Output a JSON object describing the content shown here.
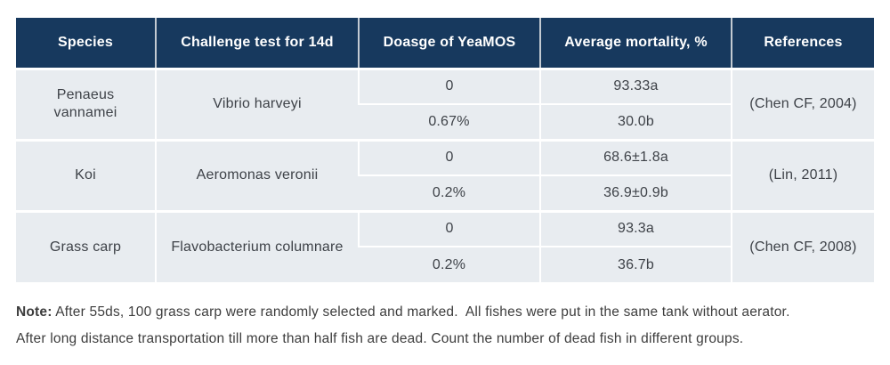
{
  "colors": {
    "header_bg": "#17395e",
    "header_text": "#ffffff",
    "row_bg": "#e8ecf0",
    "body_text": "#3e4248",
    "divider": "#ffffff"
  },
  "table": {
    "headers": [
      "Species",
      "Challenge test for 14d",
      "Doasge of YeaMOS",
      "Average mortality, %",
      "References"
    ],
    "groups": [
      {
        "species": "Penaeus vannamei",
        "challenge": "Vibrio harveyi",
        "rows": [
          {
            "dosage": "0",
            "mortality": "93.33a"
          },
          {
            "dosage": "0.67%",
            "mortality": "30.0b"
          }
        ],
        "reference": "(Chen CF, 2004)"
      },
      {
        "species": "Koi",
        "challenge": "Aeromonas veronii",
        "rows": [
          {
            "dosage": "0",
            "mortality": "68.6±1.8a"
          },
          {
            "dosage": "0.2%",
            "mortality": "36.9±0.9b"
          }
        ],
        "reference": "(Lin, 2011)"
      },
      {
        "species": "Grass carp",
        "challenge": "Flavobacterium columnare",
        "rows": [
          {
            "dosage": "0",
            "mortality": "93.3a"
          },
          {
            "dosage": "0.2%",
            "mortality": "36.7b"
          }
        ],
        "reference": "(Chen CF, 2008)"
      }
    ]
  },
  "note": {
    "label": "Note:",
    "line1": " After 55ds, 100 grass carp were randomly selected and marked.  All fishes were put in the same tank without aerator.",
    "line2": "After long distance transportation till more than half fish are dead. Count the number of dead fish in different groups."
  }
}
